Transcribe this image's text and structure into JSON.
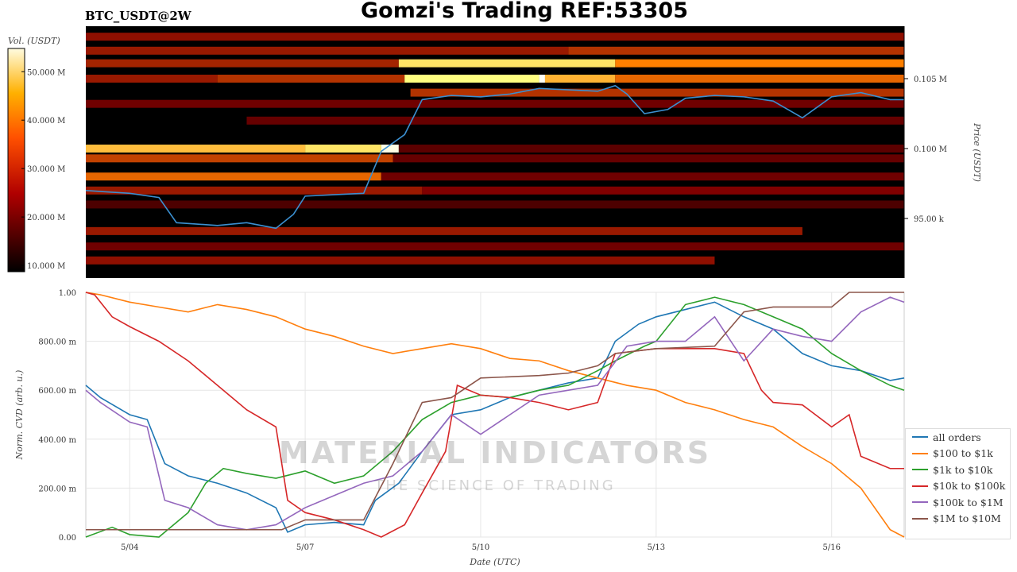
{
  "title": "Gomzi's Trading REF:53305",
  "pair": "BTC_USDT@2W",
  "watermark": {
    "brand": "MATERIAL INDICATORS",
    "tagline": "THE SCIENCE OF TRADING"
  },
  "chart_data": [
    {
      "type": "heatmap",
      "title": "BTC_USDT@2W",
      "ylabel": "Price (USDT)",
      "colorbar_label": "Vol. (USDT)",
      "colorbar_ticks": [
        "10.000 M",
        "20.000 M",
        "30.000 M",
        "40.000 M",
        "50.000 M"
      ],
      "colorbar_values": [
        10,
        20,
        30,
        40,
        50
      ],
      "colorbar_range": [
        8.7,
        54.8
      ],
      "xlim": [
        3.25,
        17.24
      ],
      "ylim": [
        90740,
        108750
      ],
      "price_ticks": [
        {
          "value": 95000,
          "label": "95.00 k"
        },
        {
          "value": 100000,
          "label": "0.100 M"
        },
        {
          "value": 105000,
          "label": "0.105 M"
        }
      ],
      "bands": [
        {
          "price": 108000,
          "segments": [
            [
              3.25,
              17.24,
              0.28
            ]
          ]
        },
        {
          "price": 107000,
          "segments": [
            [
              3.25,
              11.5,
              0.3
            ],
            [
              11.5,
              17.24,
              0.35
            ]
          ]
        },
        {
          "price": 106100,
          "segments": [
            [
              3.25,
              8.6,
              0.32
            ],
            [
              8.6,
              12.3,
              0.7
            ],
            [
              12.3,
              17.24,
              0.5
            ]
          ]
        },
        {
          "price": 105000,
          "segments": [
            [
              3.25,
              5.5,
              0.3
            ],
            [
              5.5,
              8.7,
              0.35
            ],
            [
              8.7,
              11.0,
              0.75
            ],
            [
              11.0,
              11.1,
              0.98
            ],
            [
              11.1,
              12.3,
              0.6
            ],
            [
              12.3,
              17.24,
              0.45
            ]
          ]
        },
        {
          "price": 104000,
          "segments": [
            [
              8.8,
              17.24,
              0.35
            ]
          ]
        },
        {
          "price": 103200,
          "segments": [
            [
              3.25,
              17.24,
              0.22
            ]
          ]
        },
        {
          "price": 102000,
          "segments": [
            [
              6.0,
              17.24,
              0.2
            ]
          ]
        },
        {
          "price": 100000,
          "segments": [
            [
              3.25,
              7.0,
              0.62
            ],
            [
              7.0,
              8.3,
              0.7
            ],
            [
              8.3,
              8.6,
              0.95
            ],
            [
              8.6,
              17.24,
              0.18
            ]
          ]
        },
        {
          "price": 99300,
          "segments": [
            [
              3.25,
              8.5,
              0.38
            ],
            [
              8.5,
              17.24,
              0.2
            ]
          ]
        },
        {
          "price": 98000,
          "segments": [
            [
              3.25,
              8.3,
              0.45
            ],
            [
              8.3,
              17.24,
              0.22
            ]
          ]
        },
        {
          "price": 97000,
          "segments": [
            [
              3.25,
              9.0,
              0.3
            ],
            [
              9.0,
              17.24,
              0.25
            ]
          ]
        },
        {
          "price": 96000,
          "segments": [
            [
              3.25,
              17.24,
              0.15
            ]
          ]
        },
        {
          "price": 94100,
          "segments": [
            [
              3.25,
              15.5,
              0.3
            ]
          ]
        },
        {
          "price": 93000,
          "segments": [
            [
              3.25,
              17.24,
              0.22
            ]
          ]
        },
        {
          "price": 92000,
          "segments": [
            [
              3.25,
              14.0,
              0.28
            ]
          ]
        }
      ],
      "price_series": {
        "x": [
          3.25,
          4,
          4.5,
          4.8,
          5.5,
          6,
          6.5,
          6.8,
          7,
          7.5,
          8,
          8.3,
          8.7,
          9,
          9.5,
          10,
          10.5,
          11,
          11.5,
          12,
          12.3,
          12.5,
          12.8,
          13.2,
          13.5,
          14,
          14.5,
          15,
          15.5,
          16,
          16.5,
          17,
          17.24
        ],
        "y": [
          97000,
          96800,
          96500,
          94700,
          94500,
          94700,
          94300,
          95300,
          96600,
          96700,
          96800,
          99800,
          101000,
          103500,
          103800,
          103700,
          103900,
          104300,
          104200,
          104100,
          104500,
          103900,
          102500,
          102800,
          103600,
          103800,
          103700,
          103400,
          102200,
          103700,
          104000,
          103500,
          103500
        ]
      }
    },
    {
      "type": "line",
      "xlabel": "Date (UTC)",
      "ylabel": "Norm. CVD (arb. u.)",
      "xlim": [
        3.25,
        17.24
      ],
      "ylim": [
        0,
        1
      ],
      "x_ticks": [
        {
          "value": 4,
          "label": "5/04"
        },
        {
          "value": 7,
          "label": "5/07"
        },
        {
          "value": 10,
          "label": "5/10"
        },
        {
          "value": 13,
          "label": "5/13"
        },
        {
          "value": 16,
          "label": "5/16"
        }
      ],
      "y_ticks": [
        {
          "value": 0,
          "label": "0.00"
        },
        {
          "value": 0.2,
          "label": "200.00 m"
        },
        {
          "value": 0.4,
          "label": "400.00 m"
        },
        {
          "value": 0.6,
          "label": "600.00 m"
        },
        {
          "value": 0.8,
          "label": "800.00 m"
        },
        {
          "value": 1,
          "label": "1.00"
        }
      ],
      "legend_position": "bottom-right",
      "series": [
        {
          "name": "all orders",
          "color": "#1f77b4",
          "points": [
            [
              3.25,
              0.62
            ],
            [
              3.5,
              0.57
            ],
            [
              4,
              0.5
            ],
            [
              4.3,
              0.48
            ],
            [
              4.6,
              0.3
            ],
            [
              5,
              0.25
            ],
            [
              5.5,
              0.22
            ],
            [
              6,
              0.18
            ],
            [
              6.5,
              0.12
            ],
            [
              6.7,
              0.02
            ],
            [
              7,
              0.05
            ],
            [
              7.5,
              0.06
            ],
            [
              8,
              0.05
            ],
            [
              8.2,
              0.15
            ],
            [
              8.6,
              0.22
            ],
            [
              9,
              0.35
            ],
            [
              9.5,
              0.5
            ],
            [
              10,
              0.52
            ],
            [
              10.5,
              0.57
            ],
            [
              11,
              0.6
            ],
            [
              11.5,
              0.63
            ],
            [
              12,
              0.65
            ],
            [
              12.3,
              0.8
            ],
            [
              12.7,
              0.87
            ],
            [
              13,
              0.9
            ],
            [
              13.5,
              0.93
            ],
            [
              14,
              0.96
            ],
            [
              14.5,
              0.9
            ],
            [
              15,
              0.85
            ],
            [
              15.5,
              0.75
            ],
            [
              16,
              0.7
            ],
            [
              16.5,
              0.68
            ],
            [
              17,
              0.64
            ],
            [
              17.24,
              0.65
            ]
          ]
        },
        {
          "name": "$100 to $1k",
          "color": "#ff7f0e",
          "points": [
            [
              3.25,
              1
            ],
            [
              3.5,
              0.99
            ],
            [
              4,
              0.96
            ],
            [
              4.5,
              0.94
            ],
            [
              5,
              0.92
            ],
            [
              5.5,
              0.95
            ],
            [
              6,
              0.93
            ],
            [
              6.5,
              0.9
            ],
            [
              7,
              0.85
            ],
            [
              7.5,
              0.82
            ],
            [
              8,
              0.78
            ],
            [
              8.5,
              0.75
            ],
            [
              9,
              0.77
            ],
            [
              9.5,
              0.79
            ],
            [
              10,
              0.77
            ],
            [
              10.5,
              0.73
            ],
            [
              11,
              0.72
            ],
            [
              11.5,
              0.68
            ],
            [
              12,
              0.65
            ],
            [
              12.5,
              0.62
            ],
            [
              13,
              0.6
            ],
            [
              13.5,
              0.55
            ],
            [
              14,
              0.52
            ],
            [
              14.5,
              0.48
            ],
            [
              15,
              0.45
            ],
            [
              15.5,
              0.37
            ],
            [
              16,
              0.3
            ],
            [
              16.5,
              0.2
            ],
            [
              17,
              0.03
            ],
            [
              17.24,
              0
            ]
          ]
        },
        {
          "name": "$1k to $10k",
          "color": "#2ca02c",
          "points": [
            [
              3.25,
              0
            ],
            [
              3.7,
              0.04
            ],
            [
              4,
              0.01
            ],
            [
              4.5,
              0
            ],
            [
              5,
              0.1
            ],
            [
              5.3,
              0.22
            ],
            [
              5.6,
              0.28
            ],
            [
              6,
              0.26
            ],
            [
              6.5,
              0.24
            ],
            [
              7,
              0.27
            ],
            [
              7.5,
              0.22
            ],
            [
              8,
              0.25
            ],
            [
              8.5,
              0.35
            ],
            [
              9,
              0.48
            ],
            [
              9.5,
              0.55
            ],
            [
              10,
              0.58
            ],
            [
              10.5,
              0.57
            ],
            [
              11,
              0.6
            ],
            [
              11.5,
              0.62
            ],
            [
              12,
              0.68
            ],
            [
              12.3,
              0.72
            ],
            [
              12.8,
              0.78
            ],
            [
              13,
              0.8
            ],
            [
              13.5,
              0.95
            ],
            [
              14,
              0.98
            ],
            [
              14.5,
              0.95
            ],
            [
              15,
              0.9
            ],
            [
              15.5,
              0.85
            ],
            [
              16,
              0.75
            ],
            [
              16.5,
              0.68
            ],
            [
              17,
              0.62
            ],
            [
              17.24,
              0.6
            ]
          ]
        },
        {
          "name": "$10k to $100k",
          "color": "#d62728",
          "points": [
            [
              3.25,
              1
            ],
            [
              3.4,
              0.99
            ],
            [
              3.7,
              0.9
            ],
            [
              4,
              0.86
            ],
            [
              4.5,
              0.8
            ],
            [
              5,
              0.72
            ],
            [
              5.5,
              0.62
            ],
            [
              6,
              0.52
            ],
            [
              6.5,
              0.45
            ],
            [
              6.7,
              0.15
            ],
            [
              7,
              0.1
            ],
            [
              7.5,
              0.07
            ],
            [
              8,
              0.03
            ],
            [
              8.3,
              0
            ],
            [
              8.7,
              0.05
            ],
            [
              9,
              0.18
            ],
            [
              9.4,
              0.35
            ],
            [
              9.6,
              0.62
            ],
            [
              10,
              0.58
            ],
            [
              10.5,
              0.57
            ],
            [
              11,
              0.55
            ],
            [
              11.5,
              0.52
            ],
            [
              12,
              0.55
            ],
            [
              12.3,
              0.75
            ],
            [
              13,
              0.77
            ],
            [
              13.5,
              0.77
            ],
            [
              14,
              0.77
            ],
            [
              14.5,
              0.75
            ],
            [
              14.8,
              0.6
            ],
            [
              15,
              0.55
            ],
            [
              15.5,
              0.54
            ],
            [
              16,
              0.45
            ],
            [
              16.3,
              0.5
            ],
            [
              16.5,
              0.33
            ],
            [
              17,
              0.28
            ],
            [
              17.24,
              0.28
            ]
          ]
        },
        {
          "name": "$100k to $1M",
          "color": "#9467bd",
          "points": [
            [
              3.25,
              0.6
            ],
            [
              3.5,
              0.55
            ],
            [
              4,
              0.47
            ],
            [
              4.3,
              0.45
            ],
            [
              4.6,
              0.15
            ],
            [
              5,
              0.12
            ],
            [
              5.5,
              0.05
            ],
            [
              6,
              0.03
            ],
            [
              6.5,
              0.05
            ],
            [
              7,
              0.12
            ],
            [
              7.5,
              0.17
            ],
            [
              8,
              0.22
            ],
            [
              8.5,
              0.25
            ],
            [
              9,
              0.35
            ],
            [
              9.5,
              0.5
            ],
            [
              10,
              0.42
            ],
            [
              10.5,
              0.5
            ],
            [
              11,
              0.58
            ],
            [
              11.5,
              0.6
            ],
            [
              12,
              0.62
            ],
            [
              12.5,
              0.78
            ],
            [
              13,
              0.8
            ],
            [
              13.5,
              0.8
            ],
            [
              14,
              0.9
            ],
            [
              14.5,
              0.72
            ],
            [
              15,
              0.85
            ],
            [
              15.5,
              0.82
            ],
            [
              16,
              0.8
            ],
            [
              16.5,
              0.92
            ],
            [
              17,
              0.98
            ],
            [
              17.24,
              0.96
            ]
          ]
        },
        {
          "name": "$1M to $10M",
          "color": "#8c564b",
          "points": [
            [
              3.25,
              0.03
            ],
            [
              6.6,
              0.03
            ],
            [
              7,
              0.07
            ],
            [
              8,
              0.07
            ],
            [
              8.5,
              0.3
            ],
            [
              9,
              0.55
            ],
            [
              9.5,
              0.57
            ],
            [
              10,
              0.65
            ],
            [
              11,
              0.66
            ],
            [
              11.5,
              0.67
            ],
            [
              12,
              0.7
            ],
            [
              12.3,
              0.75
            ],
            [
              13,
              0.77
            ],
            [
              14,
              0.78
            ],
            [
              14.5,
              0.92
            ],
            [
              15,
              0.94
            ],
            [
              16,
              0.94
            ],
            [
              16.3,
              1
            ],
            [
              17.24,
              1
            ]
          ]
        }
      ]
    }
  ]
}
